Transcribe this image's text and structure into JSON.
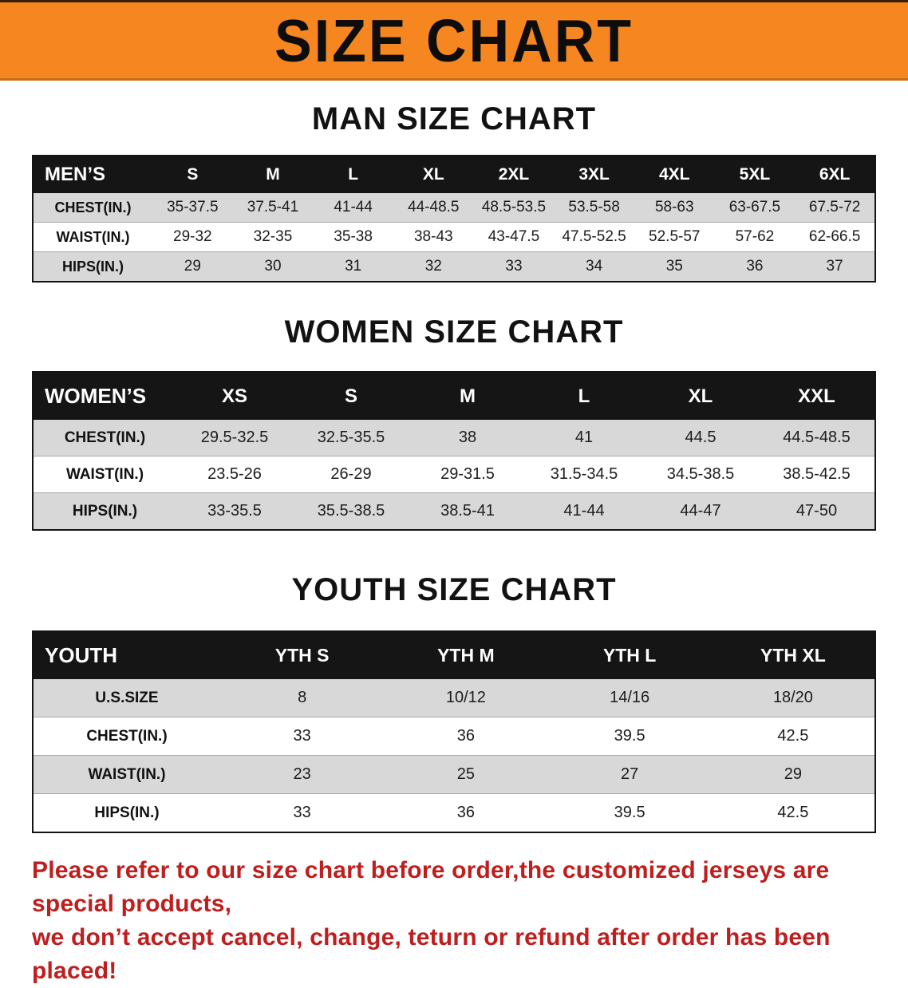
{
  "banner": {
    "title": "SIZE CHART",
    "bg_color": "#f6861f",
    "text_color": "#0d0d0d"
  },
  "sections": [
    {
      "heading": "MAN SIZE CHART",
      "table": {
        "header": [
          "MEN’S",
          "S",
          "M",
          "L",
          "XL",
          "2XL",
          "3XL",
          "4XL",
          "5XL",
          "6XL"
        ],
        "rows": [
          {
            "label": "CHEST(IN.)",
            "values": [
              "35-37.5",
              "37.5-41",
              "41-44",
              "44-48.5",
              "48.5-53.5",
              "53.5-58",
              "58-63",
              "63-67.5",
              "67.5-72"
            ]
          },
          {
            "label": "WAIST(IN.)",
            "values": [
              "29-32",
              "32-35",
              "35-38",
              "38-43",
              "43-47.5",
              "47.5-52.5",
              "52.5-57",
              "57-62",
              "62-66.5"
            ]
          },
          {
            "label": "HIPS(IN.)",
            "values": [
              "29",
              "30",
              "31",
              "32",
              "33",
              "34",
              "35",
              "36",
              "37"
            ]
          }
        ]
      }
    },
    {
      "heading": "WOMEN SIZE CHART",
      "table": {
        "header": [
          "WOMEN’S",
          "XS",
          "S",
          "M",
          "L",
          "XL",
          "XXL"
        ],
        "rows": [
          {
            "label": "CHEST(IN.)",
            "values": [
              "29.5-32.5",
              "32.5-35.5",
              "38",
              "41",
              "44.5",
              "44.5-48.5"
            ]
          },
          {
            "label": "WAIST(IN.)",
            "values": [
              "23.5-26",
              "26-29",
              "29-31.5",
              "31.5-34.5",
              "34.5-38.5",
              "38.5-42.5"
            ]
          },
          {
            "label": "HIPS(IN.)",
            "values": [
              "33-35.5",
              "35.5-38.5",
              "38.5-41",
              "41-44",
              "44-47",
              "47-50"
            ]
          }
        ]
      }
    },
    {
      "heading": "YOUTH SIZE CHART",
      "table": {
        "header": [
          "YOUTH",
          "YTH S",
          "YTH M",
          "YTH L",
          "YTH XL"
        ],
        "rows": [
          {
            "label": "U.S.SIZE",
            "values": [
              "8",
              "10/12",
              "14/16",
              "18/20"
            ]
          },
          {
            "label": "CHEST(IN.)",
            "values": [
              "33",
              "36",
              "39.5",
              "42.5"
            ]
          },
          {
            "label": "WAIST(IN.)",
            "values": [
              "23",
              "25",
              "27",
              "29"
            ]
          },
          {
            "label": "HIPS(IN.)",
            "values": [
              "33",
              "36",
              "39.5",
              "42.5"
            ]
          }
        ]
      }
    }
  ],
  "footer": {
    "text_color": "#c01d1d",
    "lines": [
      "Please refer to our size chart before order,the customized jerseys are special products,",
      "we don’t accept cancel, change, teturn or refund after order has been placed!"
    ]
  }
}
